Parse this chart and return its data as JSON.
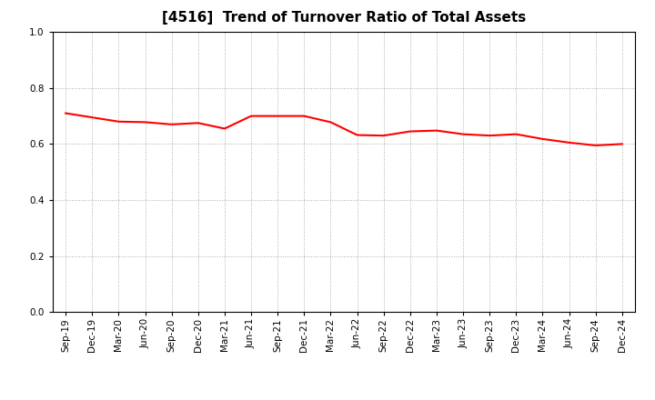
{
  "title": "[4516]  Trend of Turnover Ratio of Total Assets",
  "labels": [
    "Sep-19",
    "Dec-19",
    "Mar-20",
    "Jun-20",
    "Sep-20",
    "Dec-20",
    "Mar-21",
    "Jun-21",
    "Sep-21",
    "Dec-21",
    "Mar-22",
    "Jun-22",
    "Sep-22",
    "Dec-22",
    "Mar-23",
    "Jun-23",
    "Sep-23",
    "Dec-23",
    "Mar-24",
    "Jun-24",
    "Sep-24",
    "Dec-24"
  ],
  "values": [
    0.71,
    0.695,
    0.68,
    0.678,
    0.67,
    0.675,
    0.655,
    0.7,
    0.7,
    0.7,
    0.678,
    0.632,
    0.63,
    0.645,
    0.648,
    0.635,
    0.63,
    0.635,
    0.618,
    0.605,
    0.595,
    0.6
  ],
  "line_color": "#FF0000",
  "line_width": 1.5,
  "ylim": [
    0.0,
    1.0
  ],
  "yticks": [
    0.0,
    0.2,
    0.4,
    0.6,
    0.8,
    1.0
  ],
  "grid_color": "#aaaaaa",
  "bg_color": "#ffffff",
  "plot_bg_color": "#ffffff",
  "title_fontsize": 11,
  "tick_fontsize": 7.5,
  "spine_color": "#000000"
}
